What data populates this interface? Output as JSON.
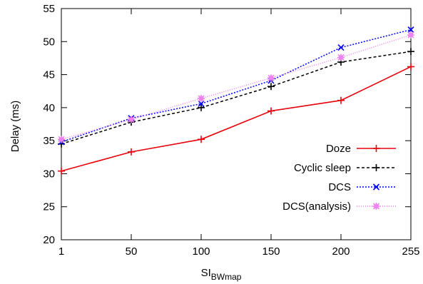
{
  "chart_data": {
    "type": "line",
    "title": "",
    "xlabel": "SI",
    "xlabel_sub": "BWmap",
    "ylabel": "Delay (ms)",
    "categories": [
      "1",
      "50",
      "100",
      "150",
      "200",
      "255"
    ],
    "ylim": [
      20,
      55
    ],
    "yticks": [
      20,
      25,
      30,
      35,
      40,
      45,
      50,
      55
    ],
    "grid": false,
    "legend_position": "bottom-right",
    "series": [
      {
        "name": "Doze",
        "values": [
          30.4,
          33.3,
          35.2,
          39.5,
          41.1,
          46.2
        ],
        "color": "#e8000b",
        "dash": "solid",
        "marker": "plus"
      },
      {
        "name": "Cyclic sleep",
        "values": [
          34.5,
          37.8,
          40.0,
          43.2,
          46.9,
          48.5
        ],
        "color": "#000000",
        "dash": "dashed",
        "marker": "plus"
      },
      {
        "name": "DCS",
        "values": [
          34.8,
          38.4,
          40.6,
          44.1,
          49.1,
          51.8
        ],
        "color": "#0000ff",
        "dash": "dotted",
        "marker": "x"
      },
      {
        "name": "DCS(analysis)",
        "values": [
          35.2,
          38.2,
          41.4,
          44.5,
          47.6,
          51.0
        ],
        "color": "#ee82ee",
        "dash": "fine-dotted",
        "marker": "star"
      }
    ]
  }
}
